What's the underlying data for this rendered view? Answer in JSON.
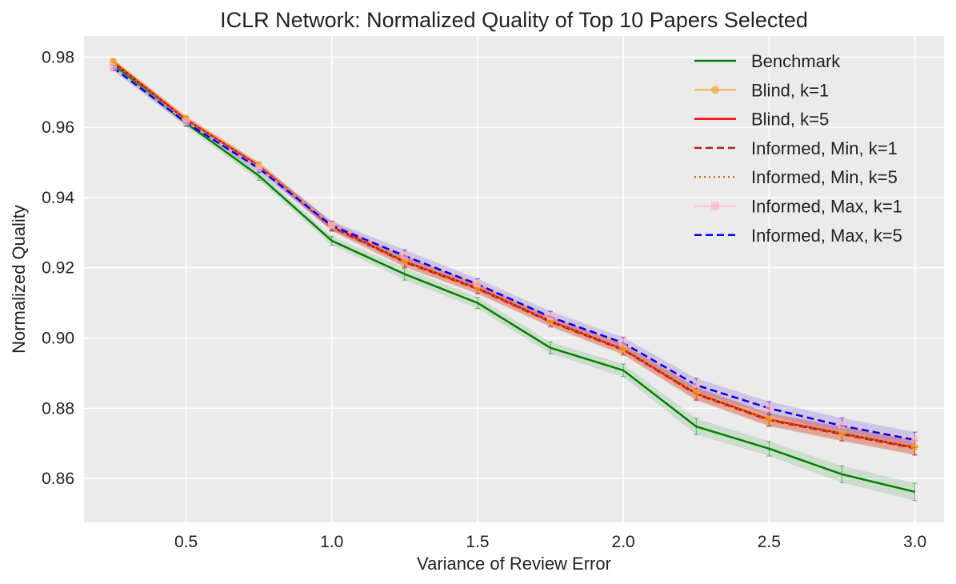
{
  "chart_data": {
    "type": "line",
    "title": "ICLR Network: Normalized Quality of Top 10 Papers Selected",
    "xlabel": "Variance of Review Error",
    "ylabel": "Normalized Quality",
    "xlim": [
      0.15,
      3.1
    ],
    "ylim": [
      0.8475,
      0.986
    ],
    "xticks": [
      0.5,
      1.0,
      1.5,
      2.0,
      2.5,
      3.0
    ],
    "xtick_labels": [
      "0.5",
      "1.0",
      "1.5",
      "2.0",
      "2.5",
      "3.0"
    ],
    "yticks": [
      0.86,
      0.88,
      0.9,
      0.92,
      0.94,
      0.96,
      0.98
    ],
    "ytick_labels": [
      "0.86",
      "0.88",
      "0.90",
      "0.92",
      "0.94",
      "0.96",
      "0.98"
    ],
    "grid": true,
    "legend_position": "top-right",
    "x": [
      0.25,
      0.5,
      0.75,
      1.0,
      1.25,
      1.5,
      1.75,
      2.0,
      2.25,
      2.5,
      2.75,
      3.0
    ],
    "series": [
      {
        "name": "Benchmark",
        "color": "#008000",
        "style": "solid",
        "marker": "none",
        "values": [
          0.9778,
          0.9612,
          0.9462,
          0.9277,
          0.9182,
          0.91,
          0.8972,
          0.8908,
          0.8748,
          0.8685,
          0.8612,
          0.8562
        ],
        "err": [
          0.001,
          0.001,
          0.0013,
          0.0013,
          0.0017,
          0.0016,
          0.0017,
          0.0018,
          0.0023,
          0.0021,
          0.0024,
          0.0025
        ]
      },
      {
        "name": "Blind, k=1",
        "color": "#f5a623",
        "style": "solid",
        "marker": "circle",
        "alpha": 0.6,
        "values": [
          0.9788,
          0.9625,
          0.9492,
          0.932,
          0.922,
          0.9145,
          0.905,
          0.897,
          0.8845,
          0.877,
          0.873,
          0.869
        ],
        "err": [
          0.0008,
          0.0009,
          0.001,
          0.0012,
          0.0015,
          0.0015,
          0.0015,
          0.0015,
          0.0018,
          0.0018,
          0.002,
          0.002
        ]
      },
      {
        "name": "Blind, k=5",
        "color": "#ff0000",
        "style": "solid",
        "marker": "none",
        "values": [
          0.9786,
          0.9622,
          0.949,
          0.9318,
          0.9218,
          0.9142,
          0.9048,
          0.8968,
          0.8842,
          0.8768,
          0.8728,
          0.8688
        ],
        "err": [
          0.0008,
          0.0009,
          0.001,
          0.0012,
          0.0015,
          0.0015,
          0.0015,
          0.0015,
          0.0018,
          0.0018,
          0.002,
          0.002
        ]
      },
      {
        "name": "Informed, Min, k=1",
        "color": "#b22222",
        "style": "dashed",
        "marker": "none",
        "values": [
          0.9785,
          0.9621,
          0.9489,
          0.9316,
          0.9216,
          0.914,
          0.9046,
          0.8966,
          0.884,
          0.8766,
          0.8726,
          0.8686
        ],
        "err": [
          0.0008,
          0.0009,
          0.001,
          0.0012,
          0.0015,
          0.0015,
          0.0015,
          0.0015,
          0.0018,
          0.0018,
          0.002,
          0.002
        ]
      },
      {
        "name": "Informed, Min, k=5",
        "color": "#d2691e",
        "style": "dotted",
        "marker": "none",
        "values": [
          0.9786,
          0.9622,
          0.949,
          0.9318,
          0.9218,
          0.9142,
          0.9048,
          0.8968,
          0.8842,
          0.8768,
          0.8728,
          0.8688
        ],
        "err": [
          0.0008,
          0.0009,
          0.001,
          0.0012,
          0.0015,
          0.0015,
          0.0015,
          0.0015,
          0.0018,
          0.0018,
          0.002,
          0.002
        ]
      },
      {
        "name": "Informed, Max, k=1",
        "color": "#ffb6c1",
        "style": "solid",
        "marker": "square",
        "alpha": 0.6,
        "values": [
          0.9772,
          0.9616,
          0.9485,
          0.9322,
          0.9236,
          0.9155,
          0.9062,
          0.8988,
          0.8868,
          0.8802,
          0.8752,
          0.8712
        ],
        "err": [
          0.0009,
          0.001,
          0.0011,
          0.0013,
          0.0017,
          0.0016,
          0.0016,
          0.0016,
          0.0019,
          0.0019,
          0.0022,
          0.0022
        ]
      },
      {
        "name": "Informed, Max, k=5",
        "color": "#0000ff",
        "style": "dashed",
        "marker": "none",
        "values": [
          0.977,
          0.9614,
          0.9483,
          0.932,
          0.9234,
          0.9153,
          0.906,
          0.8986,
          0.8866,
          0.88,
          0.875,
          0.871
        ],
        "err": [
          0.0009,
          0.001,
          0.0011,
          0.0013,
          0.0017,
          0.0016,
          0.0016,
          0.0016,
          0.0019,
          0.0019,
          0.0022,
          0.0022
        ]
      }
    ]
  }
}
